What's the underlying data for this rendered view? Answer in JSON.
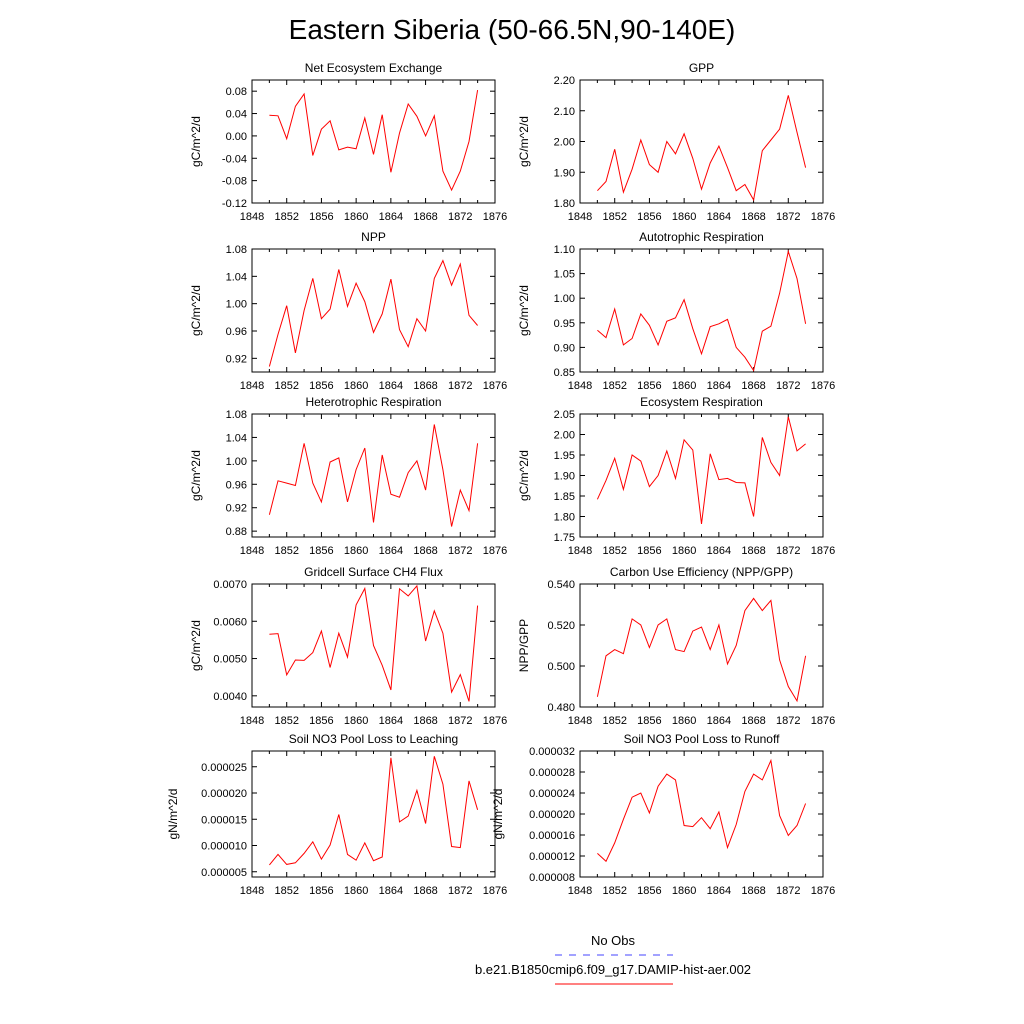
{
  "title": "Eastern Siberia (50-66.5N,90-140E)",
  "legend": {
    "entries": [
      {
        "label": "No Obs",
        "color": "#4444ff",
        "dash": true
      },
      {
        "label": "b.e21.B1850cmip6.f09_g17.DAMIP-hist-aer.002",
        "color": "#ff0000",
        "dash": false
      }
    ]
  },
  "chart_data": [
    {
      "type": "line",
      "title": "Net Ecosystem Exchange",
      "xlabel": "",
      "ylabel": "gC/m^2/d",
      "xlim": [
        1848,
        1876
      ],
      "ylim": [
        -0.12,
        0.1
      ],
      "xticks": [
        1848,
        1852,
        1856,
        1860,
        1864,
        1868,
        1872,
        1876
      ],
      "yticks": [
        -0.12,
        -0.08,
        -0.04,
        0.0,
        0.04,
        0.08
      ],
      "ytick_labels": [
        "-0.12",
        "-0.08",
        "-0.04",
        "0.00",
        "0.04",
        "0.08"
      ],
      "series": [
        {
          "color": "#ff0000",
          "x": [
            1850,
            1851,
            1852,
            1853,
            1854,
            1855,
            1856,
            1857,
            1858,
            1859,
            1860,
            1861,
            1862,
            1863,
            1864,
            1865,
            1866,
            1867,
            1868,
            1869,
            1870,
            1871,
            1872,
            1873,
            1874
          ],
          "y": [
            0.037,
            0.036,
            -0.005,
            0.053,
            0.075,
            -0.035,
            0.012,
            0.027,
            -0.025,
            -0.02,
            -0.023,
            0.032,
            -0.033,
            0.038,
            -0.065,
            0.005,
            0.057,
            0.035,
            0.0,
            0.036,
            -0.063,
            -0.097,
            -0.063,
            -0.01,
            0.082
          ]
        }
      ]
    },
    {
      "type": "line",
      "title": "GPP",
      "xlabel": "",
      "ylabel": "gC/m^2/d",
      "xlim": [
        1848,
        1876
      ],
      "ylim": [
        1.8,
        2.2
      ],
      "xticks": [
        1848,
        1852,
        1856,
        1860,
        1864,
        1868,
        1872,
        1876
      ],
      "yticks": [
        1.8,
        1.9,
        2.0,
        2.1,
        2.2
      ],
      "ytick_labels": [
        "1.80",
        "1.90",
        "2.00",
        "2.10",
        "2.20"
      ],
      "series": [
        {
          "color": "#ff0000",
          "x": [
            1850,
            1851,
            1852,
            1853,
            1854,
            1855,
            1856,
            1857,
            1858,
            1859,
            1860,
            1861,
            1862,
            1863,
            1864,
            1865,
            1866,
            1867,
            1868,
            1869,
            1870,
            1871,
            1872,
            1873,
            1874
          ],
          "y": [
            1.84,
            1.87,
            1.975,
            1.835,
            1.91,
            2.005,
            1.925,
            1.9,
            2.0,
            1.96,
            2.025,
            1.945,
            1.845,
            1.93,
            1.985,
            1.915,
            1.84,
            1.86,
            1.81,
            1.97,
            2.005,
            2.04,
            2.15,
            2.03,
            1.915
          ]
        }
      ]
    },
    {
      "type": "line",
      "title": "NPP",
      "xlabel": "",
      "ylabel": "gC/m^2/d",
      "xlim": [
        1848,
        1876
      ],
      "ylim": [
        0.9,
        1.08
      ],
      "xticks": [
        1848,
        1852,
        1856,
        1860,
        1864,
        1868,
        1872,
        1876
      ],
      "yticks": [
        0.92,
        0.96,
        1.0,
        1.04,
        1.08
      ],
      "ytick_labels": [
        "0.92",
        "0.96",
        "1.00",
        "1.04",
        "1.08"
      ],
      "series": [
        {
          "color": "#ff0000",
          "x": [
            1850,
            1851,
            1852,
            1853,
            1854,
            1855,
            1856,
            1857,
            1858,
            1859,
            1860,
            1861,
            1862,
            1863,
            1864,
            1865,
            1866,
            1867,
            1868,
            1869,
            1870,
            1871,
            1872,
            1873,
            1874
          ],
          "y": [
            0.908,
            0.955,
            0.997,
            0.928,
            0.99,
            1.037,
            0.978,
            0.992,
            1.05,
            0.996,
            1.03,
            1.003,
            0.958,
            0.985,
            1.036,
            0.962,
            0.937,
            0.978,
            0.96,
            1.037,
            1.063,
            1.027,
            1.058,
            0.983,
            0.968
          ]
        }
      ]
    },
    {
      "type": "line",
      "title": "Autotrophic Respiration",
      "xlabel": "",
      "ylabel": "gC/m^2/d",
      "xlim": [
        1848,
        1876
      ],
      "ylim": [
        0.85,
        1.1
      ],
      "xticks": [
        1848,
        1852,
        1856,
        1860,
        1864,
        1868,
        1872,
        1876
      ],
      "yticks": [
        0.85,
        0.9,
        0.95,
        1.0,
        1.05,
        1.1
      ],
      "ytick_labels": [
        "0.85",
        "0.90",
        "0.95",
        "1.00",
        "1.05",
        "1.10"
      ],
      "series": [
        {
          "color": "#ff0000",
          "x": [
            1850,
            1851,
            1852,
            1853,
            1854,
            1855,
            1856,
            1857,
            1858,
            1859,
            1860,
            1861,
            1862,
            1863,
            1864,
            1865,
            1866,
            1867,
            1868,
            1869,
            1870,
            1871,
            1872,
            1873,
            1874
          ],
          "y": [
            0.935,
            0.92,
            0.978,
            0.905,
            0.918,
            0.968,
            0.945,
            0.905,
            0.953,
            0.96,
            0.997,
            0.938,
            0.887,
            0.942,
            0.948,
            0.957,
            0.9,
            0.88,
            0.853,
            0.933,
            0.943,
            1.01,
            1.095,
            1.04,
            0.948
          ]
        }
      ]
    },
    {
      "type": "line",
      "title": "Heterotrophic Respiration",
      "xlabel": "",
      "ylabel": "gC/m^2/d",
      "xlim": [
        1848,
        1876
      ],
      "ylim": [
        0.87,
        1.08
      ],
      "xticks": [
        1848,
        1852,
        1856,
        1860,
        1864,
        1868,
        1872,
        1876
      ],
      "yticks": [
        0.88,
        0.92,
        0.96,
        1.0,
        1.04,
        1.08
      ],
      "ytick_labels": [
        "0.88",
        "0.92",
        "0.96",
        "1.00",
        "1.04",
        "1.08"
      ],
      "series": [
        {
          "color": "#ff0000",
          "x": [
            1850,
            1851,
            1852,
            1853,
            1854,
            1855,
            1856,
            1857,
            1858,
            1859,
            1860,
            1861,
            1862,
            1863,
            1864,
            1865,
            1866,
            1867,
            1868,
            1869,
            1870,
            1871,
            1872,
            1873,
            1874
          ],
          "y": [
            0.908,
            0.966,
            0.962,
            0.958,
            1.03,
            0.962,
            0.93,
            0.998,
            1.005,
            0.93,
            0.985,
            1.022,
            0.895,
            1.01,
            0.943,
            0.938,
            0.98,
            1.0,
            0.95,
            1.062,
            0.985,
            0.888,
            0.95,
            0.915,
            1.03
          ]
        }
      ]
    },
    {
      "type": "line",
      "title": "Ecosystem Respiration",
      "xlabel": "",
      "ylabel": "gC/m^2/d",
      "xlim": [
        1848,
        1876
      ],
      "ylim": [
        1.75,
        2.05
      ],
      "xticks": [
        1848,
        1852,
        1856,
        1860,
        1864,
        1868,
        1872,
        1876
      ],
      "yticks": [
        1.75,
        1.8,
        1.85,
        1.9,
        1.95,
        2.0,
        2.05
      ],
      "ytick_labels": [
        "1.75",
        "1.80",
        "1.85",
        "1.90",
        "1.95",
        "2.00",
        "2.05"
      ],
      "series": [
        {
          "color": "#ff0000",
          "x": [
            1850,
            1851,
            1852,
            1853,
            1854,
            1855,
            1856,
            1857,
            1858,
            1859,
            1860,
            1861,
            1862,
            1863,
            1864,
            1865,
            1866,
            1867,
            1868,
            1869,
            1870,
            1871,
            1872,
            1873,
            1874
          ],
          "y": [
            1.842,
            1.888,
            1.942,
            1.866,
            1.95,
            1.935,
            1.873,
            1.9,
            1.96,
            1.893,
            1.987,
            1.962,
            1.782,
            1.953,
            1.89,
            1.893,
            1.883,
            1.882,
            1.8,
            1.993,
            1.932,
            1.9,
            2.043,
            1.96,
            1.977
          ]
        }
      ]
    },
    {
      "type": "line",
      "title": "Gridcell Surface CH4 Flux",
      "xlabel": "",
      "ylabel": "gC/m^2/d",
      "xlim": [
        1848,
        1876
      ],
      "ylim": [
        0.0037,
        0.007
      ],
      "xticks": [
        1848,
        1852,
        1856,
        1860,
        1864,
        1868,
        1872,
        1876
      ],
      "yticks": [
        0.004,
        0.005,
        0.006,
        0.007
      ],
      "ytick_labels": [
        "0.0040",
        "0.0050",
        "0.0060",
        "0.0070"
      ],
      "series": [
        {
          "color": "#ff0000",
          "x": [
            1850,
            1851,
            1852,
            1853,
            1854,
            1855,
            1856,
            1857,
            1858,
            1859,
            1860,
            1861,
            1862,
            1863,
            1864,
            1865,
            1866,
            1867,
            1868,
            1869,
            1870,
            1871,
            1872,
            1873,
            1874
          ],
          "y": [
            0.00565,
            0.00567,
            0.00456,
            0.00496,
            0.00495,
            0.00516,
            0.00574,
            0.00476,
            0.00568,
            0.00504,
            0.00644,
            0.00688,
            0.00535,
            0.00482,
            0.00416,
            0.00687,
            0.00668,
            0.00695,
            0.00547,
            0.00628,
            0.00568,
            0.0041,
            0.00457,
            0.00385,
            0.00642
          ]
        }
      ]
    },
    {
      "type": "line",
      "title": "Carbon Use Efficiency (NPP/GPP)",
      "xlabel": "",
      "ylabel": "NPP/GPP",
      "xlim": [
        1848,
        1876
      ],
      "ylim": [
        0.48,
        0.54
      ],
      "xticks": [
        1848,
        1852,
        1856,
        1860,
        1864,
        1868,
        1872,
        1876
      ],
      "yticks": [
        0.48,
        0.5,
        0.52,
        0.54
      ],
      "ytick_labels": [
        "0.480",
        "0.500",
        "0.520",
        "0.540"
      ],
      "series": [
        {
          "color": "#ff0000",
          "x": [
            1850,
            1851,
            1852,
            1853,
            1854,
            1855,
            1856,
            1857,
            1858,
            1859,
            1860,
            1861,
            1862,
            1863,
            1864,
            1865,
            1866,
            1867,
            1868,
            1869,
            1870,
            1871,
            1872,
            1873,
            1874
          ],
          "y": [
            0.485,
            0.505,
            0.508,
            0.506,
            0.523,
            0.52,
            0.509,
            0.52,
            0.523,
            0.508,
            0.507,
            0.517,
            0.519,
            0.508,
            0.52,
            0.501,
            0.51,
            0.527,
            0.533,
            0.527,
            0.532,
            0.503,
            0.49,
            0.483,
            0.505
          ]
        }
      ]
    },
    {
      "type": "line",
      "title": "Soil NO3 Pool Loss to Leaching",
      "xlabel": "",
      "ylabel": "gN/m^2/d",
      "xlim": [
        1848,
        1876
      ],
      "ylim": [
        4e-06,
        2.8e-05
      ],
      "xticks": [
        1848,
        1852,
        1856,
        1860,
        1864,
        1868,
        1872,
        1876
      ],
      "yticks": [
        5e-06,
        1e-05,
        1.5e-05,
        2e-05,
        2.5e-05
      ],
      "ytick_labels": [
        "0.000005",
        "0.000010",
        "0.000015",
        "0.000020",
        "0.000025"
      ],
      "series": [
        {
          "color": "#ff0000",
          "x": [
            1850,
            1851,
            1852,
            1853,
            1854,
            1855,
            1856,
            1857,
            1858,
            1859,
            1860,
            1861,
            1862,
            1863,
            1864,
            1865,
            1866,
            1867,
            1868,
            1869,
            1870,
            1871,
            1872,
            1873,
            1874
          ],
          "y": [
            6.3e-06,
            8.3e-06,
            6.4e-06,
            6.7e-06,
            8.5e-06,
            1.07e-05,
            7.4e-06,
            1.01e-05,
            1.59e-05,
            8.3e-06,
            7.2e-06,
            1.05e-05,
            7.1e-06,
            7.8e-06,
            2.67e-05,
            1.45e-05,
            1.56e-05,
            2.05e-05,
            1.42e-05,
            2.7e-05,
            2.17e-05,
            9.8e-06,
            9.6e-06,
            2.23e-05,
            1.68e-05
          ]
        }
      ]
    },
    {
      "type": "line",
      "title": "Soil NO3 Pool Loss to Runoff",
      "xlabel": "",
      "ylabel": "gN/m^2/d",
      "xlim": [
        1848,
        1876
      ],
      "ylim": [
        8e-06,
        3.2e-05
      ],
      "xticks": [
        1848,
        1852,
        1856,
        1860,
        1864,
        1868,
        1872,
        1876
      ],
      "yticks": [
        8e-06,
        1.2e-05,
        1.6e-05,
        2e-05,
        2.4e-05,
        2.8e-05,
        3.2e-05
      ],
      "ytick_labels": [
        "0.000008",
        "0.000012",
        "0.000016",
        "0.000020",
        "0.000024",
        "0.000028",
        "0.000032"
      ],
      "series": [
        {
          "color": "#ff0000",
          "x": [
            1850,
            1851,
            1852,
            1853,
            1854,
            1855,
            1856,
            1857,
            1858,
            1859,
            1860,
            1861,
            1862,
            1863,
            1864,
            1865,
            1866,
            1867,
            1868,
            1869,
            1870,
            1871,
            1872,
            1873,
            1874
          ],
          "y": [
            1.25e-05,
            1.1e-05,
            1.45e-05,
            1.9e-05,
            2.32e-05,
            2.4e-05,
            2.02e-05,
            2.53e-05,
            2.76e-05,
            2.65e-05,
            1.78e-05,
            1.76e-05,
            1.93e-05,
            1.72e-05,
            2.04e-05,
            1.36e-05,
            1.8e-05,
            2.43e-05,
            2.76e-05,
            2.65e-05,
            3.02e-05,
            1.97e-05,
            1.59e-05,
            1.78e-05,
            2.2e-05
          ]
        }
      ]
    }
  ]
}
